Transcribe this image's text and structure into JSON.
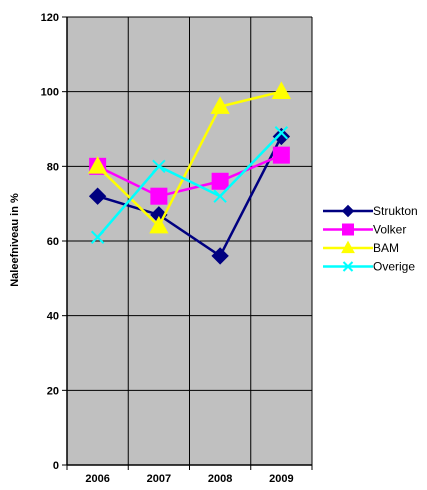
{
  "chart_data": {
    "type": "line",
    "categories": [
      "2006",
      "2007",
      "2008",
      "2009"
    ],
    "ylabel": "Naleefniveau in %",
    "ylim": [
      0,
      120
    ],
    "yticks": [
      0,
      20,
      40,
      60,
      80,
      100,
      120
    ],
    "grid": true,
    "plot_background": "#c0c0c0",
    "legend_position": "right",
    "series": [
      {
        "name": "Strukton",
        "values": [
          72,
          67,
          56,
          88
        ],
        "color": "#000080",
        "marker": "diamond"
      },
      {
        "name": "Volker",
        "values": [
          80,
          72,
          76,
          83
        ],
        "color": "#ff00ff",
        "marker": "square"
      },
      {
        "name": "BAM",
        "values": [
          80,
          64,
          96,
          100
        ],
        "color": "#ffff00",
        "marker": "triangle"
      },
      {
        "name": "Overige",
        "values": [
          61,
          80,
          72,
          89
        ],
        "color": "#00ffff",
        "marker": "x"
      }
    ]
  }
}
